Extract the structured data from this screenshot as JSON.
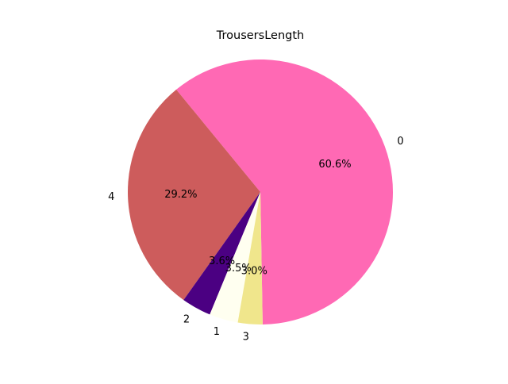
{
  "chart_data": {
    "type": "pie",
    "title": "TrousersLength",
    "categories": [
      "0",
      "4",
      "2",
      "1",
      "3"
    ],
    "values": [
      60.6,
      29.2,
      3.6,
      3.5,
      3.0
    ],
    "labels_pct": [
      "60.6%",
      "29.2%",
      "3.6%",
      "3.5%",
      "3.0%"
    ],
    "colors": [
      "#ff69b4",
      "#cd5c5c",
      "#4b0082",
      "#fffff0",
      "#f0e68c"
    ]
  }
}
